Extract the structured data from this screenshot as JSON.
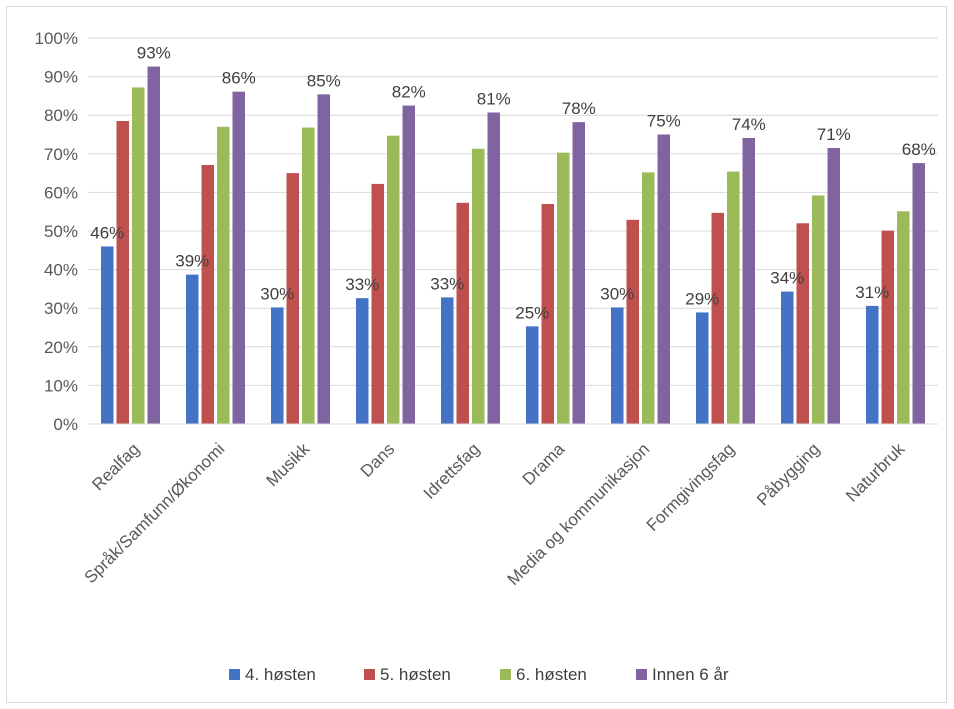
{
  "chart_data": {
    "type": "bar",
    "title": "",
    "xlabel": "",
    "ylabel": "",
    "ylim": [
      0,
      100
    ],
    "y_tick_labels": [
      "0%",
      "10%",
      "20%",
      "30%",
      "40%",
      "50%",
      "60%",
      "70%",
      "80%",
      "90%",
      "100%"
    ],
    "grid": true,
    "legend_position": "bottom",
    "categories": [
      "Realfag",
      "Språk/Samfunn/Økonomi",
      "Musikk",
      "Dans",
      "Idrettsfag",
      "Drama",
      "Media og kommunikasjon",
      "Formgivingsfag",
      "Påbygging",
      "Naturbruk"
    ],
    "series": [
      {
        "name": "4. høsten",
        "color": "#4472c4",
        "values": [
          46,
          38.7,
          30.2,
          32.6,
          32.8,
          25.3,
          30.2,
          28.9,
          34.3,
          30.6
        ],
        "labels": [
          "46%",
          "39%",
          "30%",
          "33%",
          "33%",
          "25%",
          "30%",
          "29%",
          "34%",
          "31%"
        ]
      },
      {
        "name": "5. høsten",
        "color": "#c0504d",
        "values": [
          78.5,
          67.1,
          65,
          62.2,
          57.3,
          57,
          52.9,
          54.7,
          52,
          50.1
        ],
        "labels": []
      },
      {
        "name": "6. høsten",
        "color": "#9bbb59",
        "values": [
          87.2,
          77,
          76.8,
          74.7,
          71.3,
          70.3,
          65.2,
          65.4,
          59.2,
          55.1
        ],
        "labels": []
      },
      {
        "name": "Innen 6 år",
        "color": "#8064a2",
        "values": [
          92.6,
          86.1,
          85.4,
          82.5,
          80.7,
          78.2,
          75,
          74.1,
          71.5,
          67.6
        ],
        "labels": [
          "93%",
          "86%",
          "85%",
          "82%",
          "81%",
          "78%",
          "75%",
          "74%",
          "71%",
          "68%"
        ]
      }
    ]
  }
}
